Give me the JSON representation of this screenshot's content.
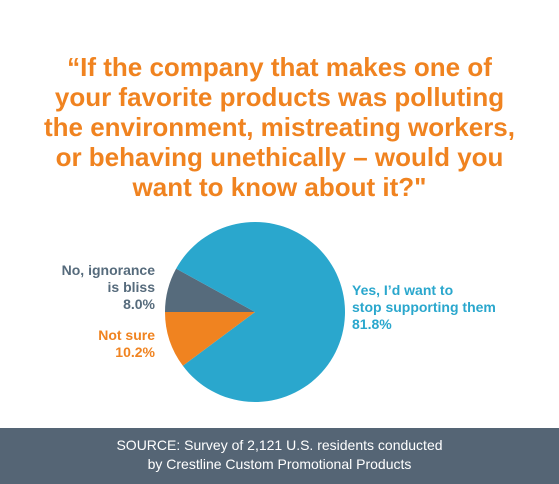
{
  "chart_data": {
    "type": "pie",
    "title": [
      "“If the company that makes one of",
      "your favorite products was polluting",
      "the environment, mistreating workers,",
      "or behaving unethically – would you",
      "want to know about it?\""
    ],
    "categories": [
      [
        "No, ignorance",
        "is bliss"
      ],
      [
        "Yes, I’d want to",
        "stop supporting them"
      ],
      [
        "Not sure"
      ]
    ],
    "values": [
      8.0,
      81.8,
      10.2
    ],
    "value_labels": [
      "8.0%",
      "81.8%",
      "10.2%"
    ],
    "colors": [
      "#566b7c",
      "#2aa7cd",
      "#f08320"
    ],
    "source": [
      "SOURCE:  Survey of 2,121 U.S. residents conducted",
      "by Crestline Custom Promotional Products"
    ]
  }
}
